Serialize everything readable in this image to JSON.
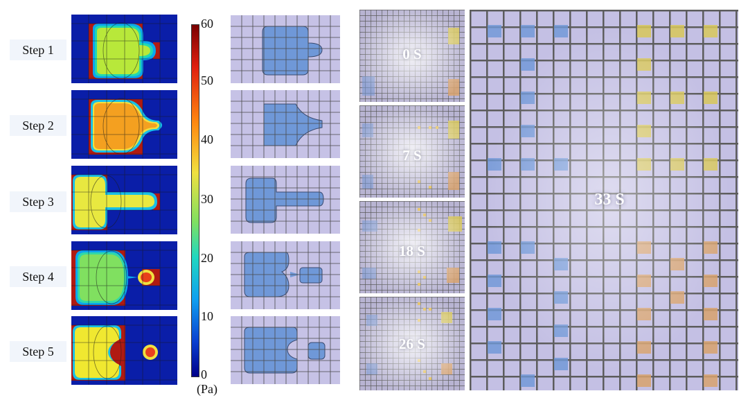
{
  "steps": [
    "Step 1",
    "Step 2",
    "Step 3",
    "Step 4",
    "Step 5"
  ],
  "colorbar": {
    "ticks": [
      "60",
      "50",
      "40",
      "30",
      "20",
      "10",
      "0"
    ],
    "unit": "(Pa)",
    "range": [
      0,
      60
    ]
  },
  "photo_timestamps": [
    "0 S",
    "7 S",
    "18 S",
    "26 S"
  ],
  "main_timestamp": "33 S",
  "colors": {
    "sim_background": "#0a1ea8",
    "photo_background": "#c6c2e6",
    "grid_line": "#4a4a4a",
    "droplet_blue": "#6f98d8",
    "droplet_yellow": "#d8c85a",
    "droplet_orange": "#d8a36e"
  }
}
